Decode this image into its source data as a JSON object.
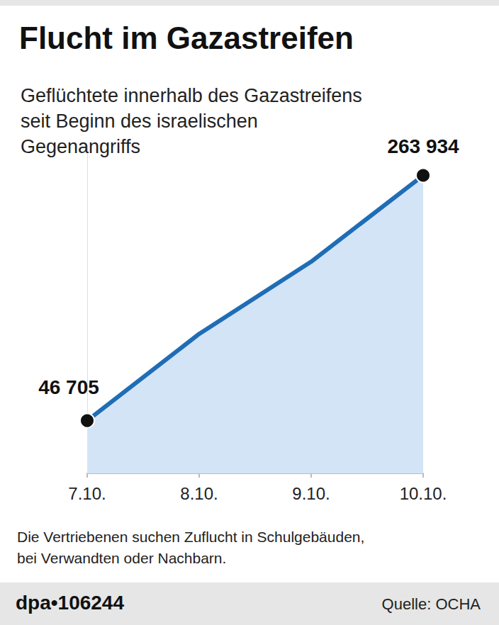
{
  "chart_data": {
    "type": "line",
    "title": "Flucht im Gazastreifen",
    "subtitle": "Geflüchtete innerhalb des Gazastreifens\nseit Beginn des israelischen\nGegenangriffs",
    "note": "Die Vertriebenen suchen Zuflucht in Schulgebäuden,\nbei Verwandten oder Nachbarn.",
    "credit": "dpa•106244",
    "source": "Quelle: OCHA",
    "categories": [
      "7.10.",
      "8.10.",
      "9.10.",
      "10.10."
    ],
    "values": [
      46705,
      123538,
      187518,
      263934
    ],
    "value_labels": [
      "46 705",
      null,
      null,
      "263 934"
    ],
    "data_labels": true,
    "color": "#1f6db5",
    "marker": "circle",
    "ylim": [
      0,
      290000
    ],
    "yticks": [],
    "grid": false,
    "tick_labels": "x"
  }
}
